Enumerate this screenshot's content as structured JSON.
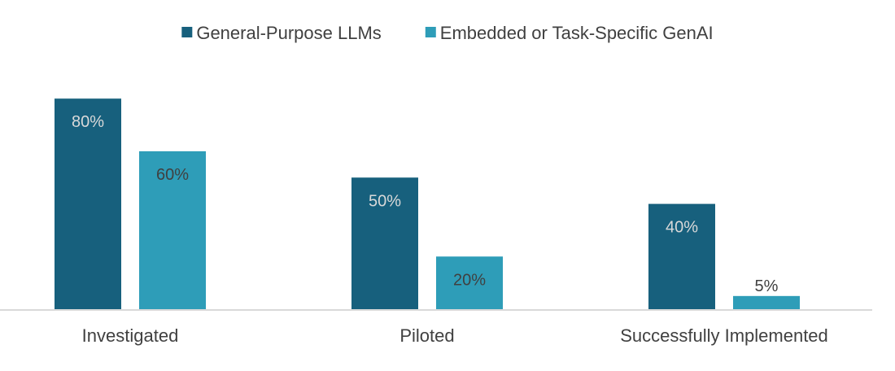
{
  "chart_data": {
    "type": "bar",
    "categories": [
      "Investigated",
      "Piloted",
      "Successfully Implemented"
    ],
    "series": [
      {
        "name": "General-Purpose LLMs",
        "values": [
          80,
          50,
          40
        ],
        "labels": [
          "80%",
          "50%",
          "40%"
        ],
        "color": "#17607d",
        "label_color": "#d9d9d9"
      },
      {
        "name": "Embedded or Task-Specific GenAI",
        "values": [
          60,
          20,
          5
        ],
        "labels": [
          "60%",
          "20%",
          "5%"
        ],
        "color": "#2e9db8",
        "label_color": "#404040"
      }
    ],
    "ylim": [
      0,
      100
    ],
    "unit": "%",
    "legend": "top-center",
    "grid": false,
    "axis_color": "#d9d9d9"
  }
}
